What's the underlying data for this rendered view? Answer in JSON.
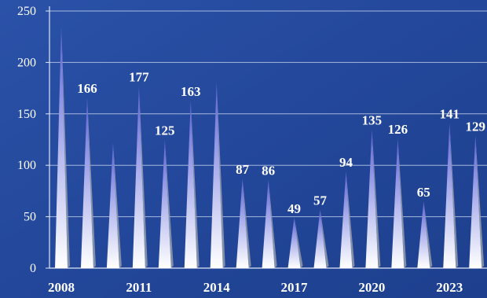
{
  "chart_data": {
    "type": "bar",
    "bar_style": "spike",
    "title": "",
    "xlabel": "",
    "ylabel": "",
    "ylim": [
      0,
      250
    ],
    "yticks": [
      0,
      50,
      100,
      150,
      200,
      250
    ],
    "grid": true,
    "legend": "none",
    "categories": [
      "2008",
      "2009",
      "2010",
      "2011",
      "2012",
      "2013",
      "2014",
      "2015",
      "2016",
      "2017",
      "2018",
      "2019",
      "2020",
      "2021",
      "2022",
      "2023",
      "2024"
    ],
    "x_tick_labels": [
      "2008",
      "2011",
      "2014",
      "2017",
      "2020",
      "2023"
    ],
    "values": [
      236,
      166,
      122,
      177,
      125,
      163,
      181,
      87,
      86,
      49,
      57,
      94,
      135,
      126,
      65,
      141,
      129
    ],
    "data_labels": [
      "",
      "166",
      "",
      "177",
      "125",
      "163",
      "",
      "87",
      "86",
      "49",
      "57",
      "94",
      "135",
      "126",
      "65",
      "141",
      "129"
    ],
    "colors": {
      "background": "#24489a",
      "grid": "#c7d3ee",
      "axis": "#dfe6f7",
      "text": "#ffffff",
      "bar_top": "#5b5fd8",
      "bar_bottom": "#ffffff",
      "bar_shadow": "#8f98a8"
    }
  }
}
